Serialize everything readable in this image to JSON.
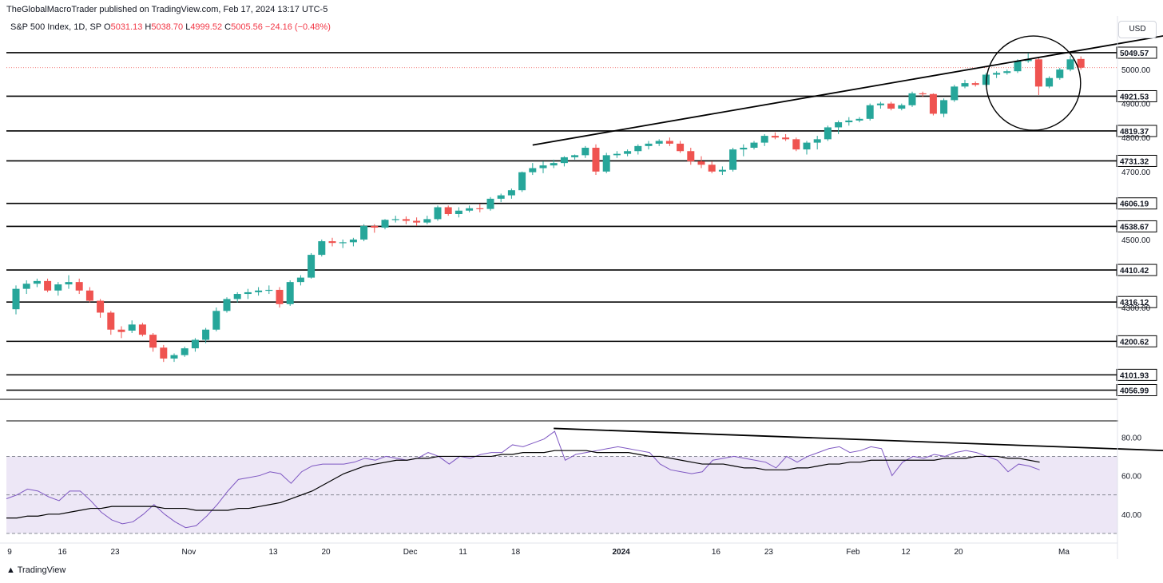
{
  "header": {
    "publisher": "TheGlobalMacroTrader published on TradingView.com, Feb 17, 2024 13:17 UTC-5",
    "symbol": "S&P 500 Index, 1D, SP",
    "o_label": "O",
    "o": "5031.13",
    "h_label": "H",
    "h": "5038.70",
    "l_label": "L",
    "l": "4999.52",
    "c_label": "C",
    "c": "5005.56",
    "change": "−24.16 (−0.48%)"
  },
  "currency": "USD",
  "brand": "TradingView",
  "colors": {
    "up": "#26a69a",
    "down": "#ef5350",
    "rsi": "#7e57c2",
    "rsi_band": "#ede7f6",
    "line": "#000000"
  },
  "chart_data": [
    {
      "type": "candlestick",
      "title": "",
      "y_ticks": [
        "5000.00",
        "4900.00",
        "4800.00",
        "4700.00",
        "4500.00",
        "4300.00"
      ],
      "levels": [
        "5049.57",
        "4921.53",
        "4819.37",
        "4731.32",
        "4606.19",
        "4538.67",
        "4410.42",
        "4316.12",
        "4200.62",
        "4101.93",
        "4056.99"
      ],
      "ylim": [
        4030,
        5120
      ],
      "x_ticks": [
        "9",
        "16",
        "23",
        "Nov",
        "13",
        "20",
        "Dec",
        "11",
        "18",
        "2024",
        "16",
        "23",
        "Feb",
        "12",
        "20",
        "Ma"
      ],
      "x_tick_idx": [
        0,
        5,
        10,
        17,
        25,
        30,
        38,
        43,
        48,
        58,
        67,
        72,
        80,
        85,
        90,
        100
      ],
      "candles": [
        [
          4295,
          4365,
          4280,
          4355
        ],
        [
          4355,
          4380,
          4340,
          4370
        ],
        [
          4370,
          4385,
          4360,
          4378
        ],
        [
          4378,
          4385,
          4345,
          4350
        ],
        [
          4350,
          4375,
          4335,
          4368
        ],
        [
          4368,
          4395,
          4355,
          4375
        ],
        [
          4375,
          4385,
          4340,
          4350
        ],
        [
          4350,
          4360,
          4315,
          4320
        ],
        [
          4320,
          4325,
          4270,
          4285
        ],
        [
          4285,
          4290,
          4220,
          4235
        ],
        [
          4235,
          4245,
          4210,
          4228
        ],
        [
          4232,
          4262,
          4225,
          4250
        ],
        [
          4250,
          4255,
          4215,
          4220
        ],
        [
          4220,
          4225,
          4170,
          4182
        ],
        [
          4182,
          4190,
          4140,
          4150
        ],
        [
          4150,
          4165,
          4140,
          4160
        ],
        [
          4160,
          4185,
          4155,
          4180
        ],
        [
          4180,
          4210,
          4170,
          4205
        ],
        [
          4205,
          4240,
          4195,
          4235
        ],
        [
          4235,
          4300,
          4230,
          4290
        ],
        [
          4290,
          4330,
          4285,
          4325
        ],
        [
          4325,
          4345,
          4315,
          4340
        ],
        [
          4340,
          4355,
          4325,
          4345
        ],
        [
          4345,
          4360,
          4335,
          4350
        ],
        [
          4350,
          4365,
          4340,
          4352
        ],
        [
          4352,
          4360,
          4300,
          4310
        ],
        [
          4310,
          4380,
          4305,
          4375
        ],
        [
          4375,
          4395,
          4365,
          4388
        ],
        [
          4388,
          4460,
          4385,
          4455
        ],
        [
          4455,
          4500,
          4450,
          4495
        ],
        [
          4495,
          4505,
          4480,
          4490
        ],
        [
          4490,
          4500,
          4475,
          4492
        ],
        [
          4492,
          4505,
          4480,
          4500
        ],
        [
          4500,
          4545,
          4495,
          4540
        ],
        [
          4540,
          4545,
          4520,
          4535
        ],
        [
          4535,
          4560,
          4530,
          4558
        ],
        [
          4558,
          4570,
          4550,
          4560
        ],
        [
          4560,
          4568,
          4545,
          4555
        ],
        [
          4555,
          4565,
          4540,
          4550
        ],
        [
          4550,
          4570,
          4545,
          4560
        ],
        [
          4560,
          4600,
          4555,
          4595
        ],
        [
          4595,
          4600,
          4570,
          4575
        ],
        [
          4575,
          4595,
          4565,
          4585
        ],
        [
          4585,
          4600,
          4580,
          4592
        ],
        [
          4592,
          4605,
          4580,
          4590
        ],
        [
          4590,
          4625,
          4585,
          4620
        ],
        [
          4620,
          4635,
          4610,
          4630
        ],
        [
          4630,
          4650,
          4620,
          4645
        ],
        [
          4645,
          4700,
          4640,
          4698
        ],
        [
          4698,
          4725,
          4690,
          4710
        ],
        [
          4710,
          4730,
          4695,
          4718
        ],
        [
          4718,
          4735,
          4710,
          4725
        ],
        [
          4725,
          4745,
          4715,
          4742
        ],
        [
          4742,
          4750,
          4735,
          4748
        ],
        [
          4748,
          4775,
          4740,
          4770
        ],
        [
          4770,
          4780,
          4690,
          4700
        ],
        [
          4700,
          4755,
          4695,
          4748
        ],
        [
          4748,
          4760,
          4740,
          4752
        ],
        [
          4752,
          4765,
          4745,
          4760
        ],
        [
          4760,
          4780,
          4750,
          4775
        ],
        [
          4775,
          4790,
          4765,
          4782
        ],
        [
          4782,
          4795,
          4775,
          4790
        ],
        [
          4790,
          4800,
          4775,
          4782
        ],
        [
          4782,
          4790,
          4755,
          4760
        ],
        [
          4760,
          4770,
          4720,
          4730
        ],
        [
          4730,
          4745,
          4710,
          4720
        ],
        [
          4720,
          4730,
          4695,
          4700
        ],
        [
          4700,
          4715,
          4690,
          4705
        ],
        [
          4705,
          4770,
          4700,
          4765
        ],
        [
          4765,
          4780,
          4745,
          4770
        ],
        [
          4770,
          4790,
          4765,
          4785
        ],
        [
          4785,
          4810,
          4775,
          4805
        ],
        [
          4805,
          4815,
          4795,
          4800
        ],
        [
          4800,
          4810,
          4790,
          4795
        ],
        [
          4795,
          4800,
          4760,
          4765
        ],
        [
          4765,
          4790,
          4750,
          4785
        ],
        [
          4785,
          4805,
          4765,
          4795
        ],
        [
          4795,
          4835,
          4790,
          4830
        ],
        [
          4830,
          4850,
          4810,
          4845
        ],
        [
          4845,
          4860,
          4835,
          4850
        ],
        [
          4850,
          4860,
          4845,
          4855
        ],
        [
          4855,
          4900,
          4850,
          4895
        ],
        [
          4895,
          4905,
          4885,
          4900
        ],
        [
          4900,
          4905,
          4880,
          4885
        ],
        [
          4885,
          4900,
          4880,
          4895
        ],
        [
          4895,
          4935,
          4890,
          4930
        ],
        [
          4930,
          4935,
          4920,
          4928
        ],
        [
          4928,
          4930,
          4865,
          4870
        ],
        [
          4870,
          4915,
          4860,
          4910
        ],
        [
          4910,
          4955,
          4905,
          4950
        ],
        [
          4950,
          4970,
          4945,
          4960
        ],
        [
          4960,
          4965,
          4950,
          4955
        ],
        [
          4955,
          4990,
          4950,
          4985
        ],
        [
          4985,
          4995,
          4975,
          4990
        ],
        [
          4990,
          5000,
          4985,
          4995
        ],
        [
          4995,
          5030,
          4990,
          5025
        ],
        [
          5025,
          5048,
          5020,
          5030
        ],
        [
          5030,
          5035,
          4925,
          4950
        ],
        [
          4950,
          4980,
          4945,
          4975
        ],
        [
          4975,
          5005,
          4970,
          5000
        ],
        [
          5000,
          5040,
          4995,
          5030
        ],
        [
          5031.13,
          5038.7,
          4999.52,
          5005.56
        ]
      ],
      "trendline": {
        "from": [
          49,
          4778
        ],
        "to": [
          109,
          5100
        ]
      }
    },
    {
      "type": "line",
      "title": "",
      "y_ticks": [
        "80.00",
        "60.00",
        "40.00"
      ],
      "ylim": [
        25,
        88
      ],
      "band": [
        30,
        70
      ],
      "mid": 50,
      "series": [
        {
          "values": [
            48,
            50,
            53,
            52,
            49,
            47,
            52,
            52,
            47,
            41,
            37,
            35,
            36,
            40,
            45,
            40,
            36,
            33,
            34,
            39,
            45,
            52,
            58,
            59,
            60,
            62,
            61,
            56,
            62,
            65,
            66,
            66,
            66,
            67,
            69,
            68,
            70,
            69,
            68,
            69,
            72,
            70,
            66,
            70,
            69,
            71,
            72,
            72,
            76,
            75,
            77,
            79,
            83,
            68,
            71,
            72,
            73,
            74,
            75,
            74,
            73,
            72,
            66,
            63,
            62,
            61,
            62,
            68,
            69,
            70,
            69,
            68,
            67,
            64,
            70,
            67,
            70,
            72,
            74,
            75,
            72,
            73,
            75,
            74,
            60,
            67,
            70,
            69,
            71,
            70,
            72,
            73,
            72,
            70,
            68,
            62,
            66,
            65,
            63
          ]
        },
        {
          "values": [
            38,
            38,
            39,
            39,
            40,
            40,
            41,
            42,
            43,
            43,
            44,
            44,
            44,
            44,
            44,
            43,
            43,
            43,
            42,
            42,
            42,
            42,
            43,
            43,
            44,
            45,
            46,
            48,
            50,
            52,
            55,
            58,
            61,
            63,
            65,
            66,
            67,
            68,
            68,
            69,
            69,
            70,
            70,
            70,
            70,
            70,
            70,
            71,
            71,
            72,
            72,
            72,
            73,
            73,
            73,
            73,
            72,
            72,
            72,
            72,
            71,
            70,
            70,
            69,
            68,
            67,
            66,
            66,
            66,
            65,
            64,
            64,
            63,
            63,
            63,
            64,
            64,
            65,
            66,
            66,
            67,
            67,
            68,
            68,
            68,
            68,
            68,
            68,
            68,
            69,
            69,
            69,
            70,
            70,
            70,
            69,
            69,
            68,
            67
          ]
        }
      ],
      "trendline": {
        "from": [
          51,
          84.5
        ],
        "to": [
          109,
          73
        ]
      }
    }
  ]
}
